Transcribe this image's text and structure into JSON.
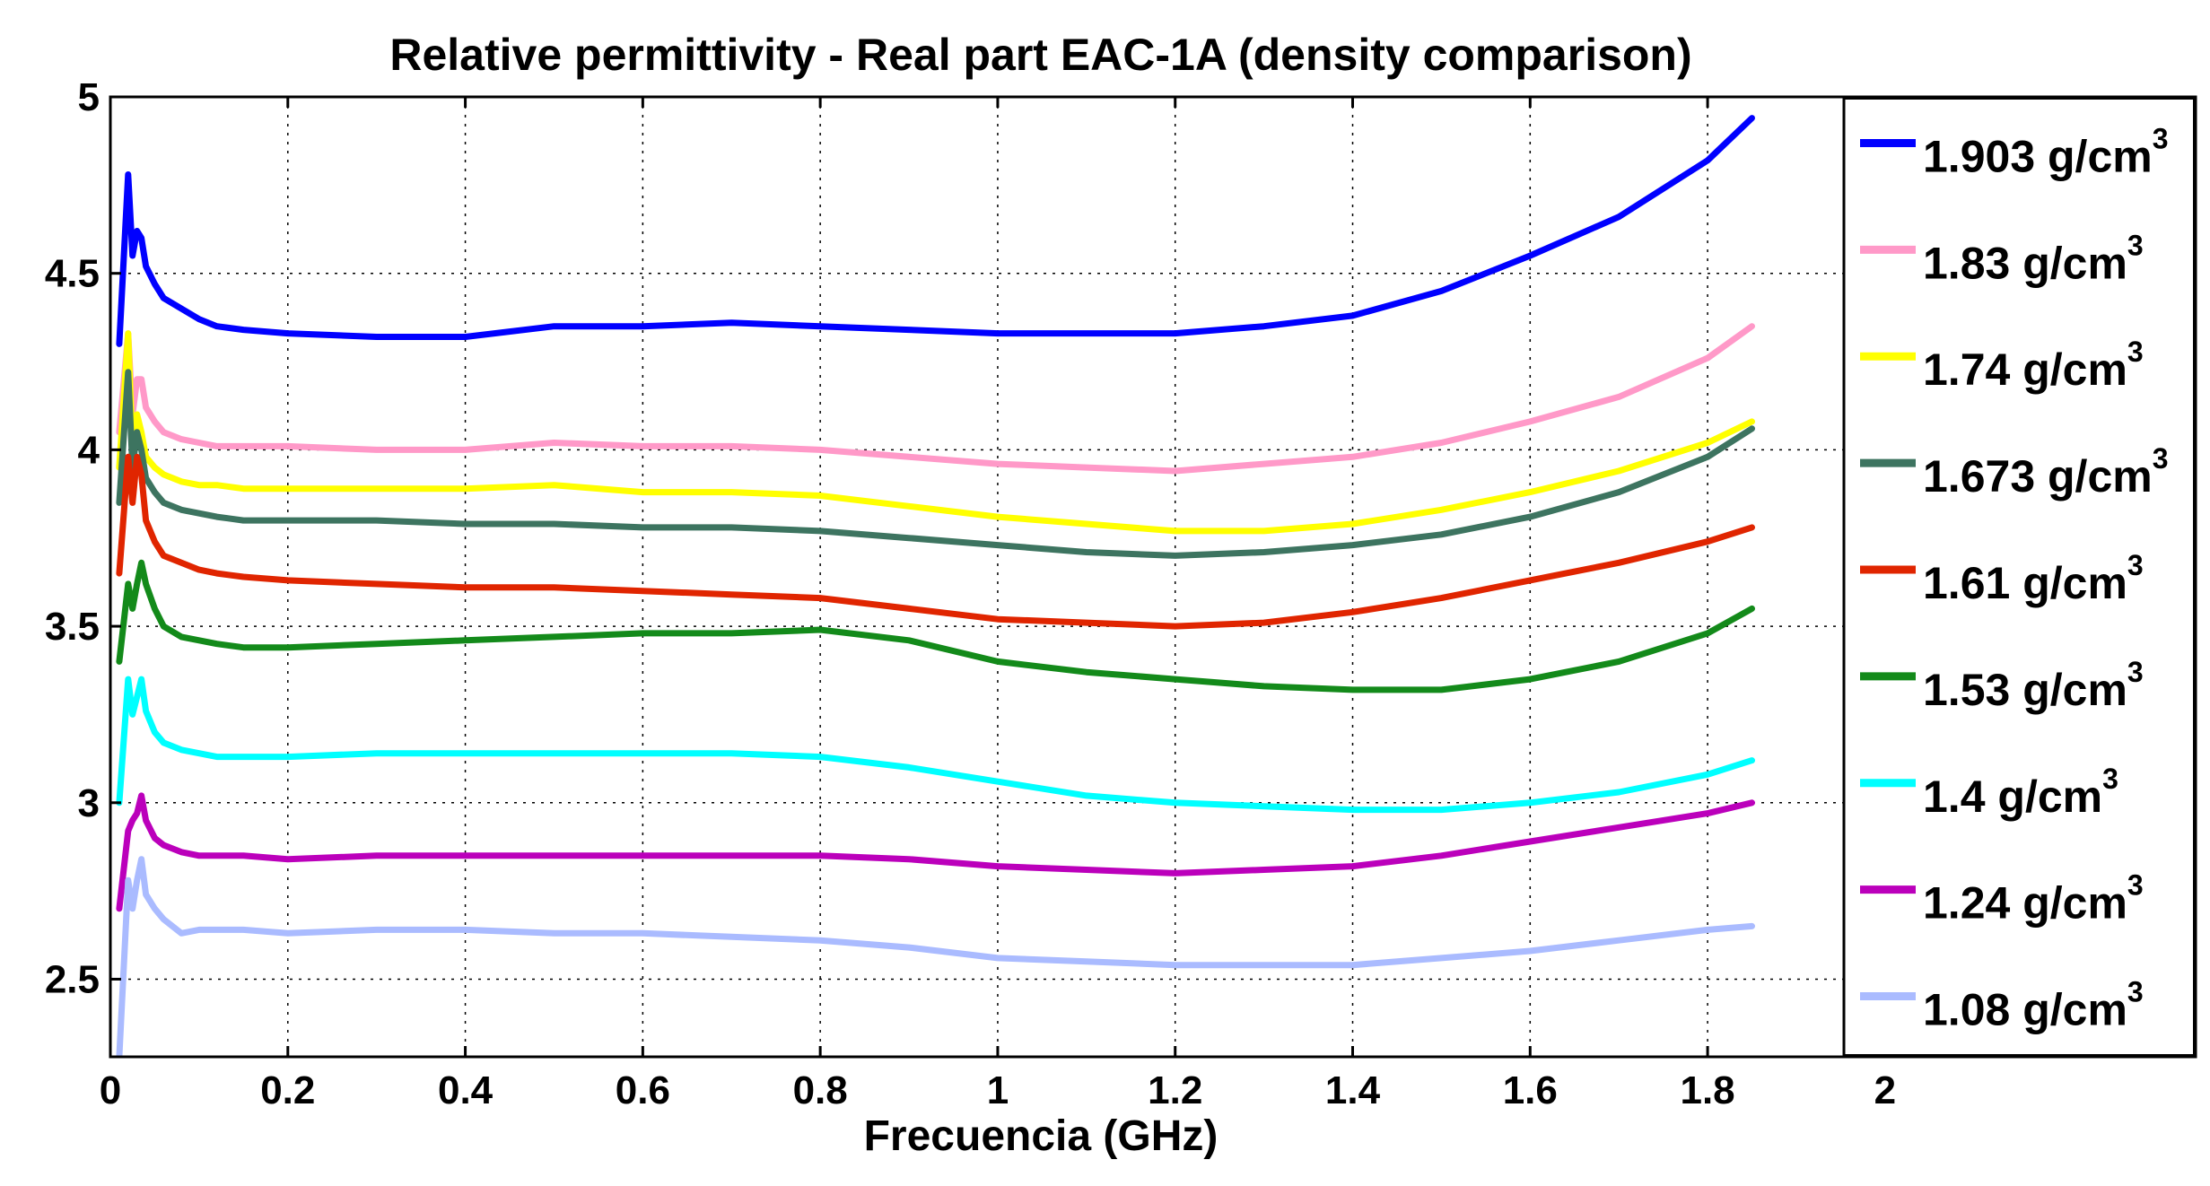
{
  "chart_data": {
    "type": "line",
    "title": "Relative permittivity - Real part EAC-1A (density comparison)",
    "xlabel": "Frecuencia (GHz)",
    "ylabel": "",
    "xlim": [
      0,
      2.35
    ],
    "ylim": [
      2.28,
      5
    ],
    "grid": true,
    "legend_position": "right",
    "x_ticks": [
      0,
      0.2,
      0.4,
      0.6,
      0.8,
      1,
      1.2,
      1.4,
      1.6,
      1.8,
      2
    ],
    "x_tick_labels": [
      "0",
      "0.2",
      "0.4",
      "0.6",
      "0.8",
      "1",
      "1.2",
      "1.4",
      "1.6",
      "1.8",
      "2"
    ],
    "y_ticks": [
      2.5,
      3,
      3.5,
      4,
      4.5,
      5
    ],
    "y_tick_labels": [
      "2.5",
      "3",
      "3.5",
      "4",
      "4.5",
      "5"
    ],
    "x": [
      0.01,
      0.02,
      0.025,
      0.03,
      0.035,
      0.04,
      0.05,
      0.06,
      0.08,
      0.1,
      0.12,
      0.15,
      0.2,
      0.3,
      0.4,
      0.5,
      0.6,
      0.7,
      0.8,
      0.9,
      1.0,
      1.1,
      1.2,
      1.3,
      1.4,
      1.5,
      1.6,
      1.7,
      1.8,
      1.85
    ],
    "series": [
      {
        "name": "1.903",
        "unit": "g/cm",
        "exp": "3",
        "color": "#0000ff",
        "values": [
          4.3,
          4.78,
          4.55,
          4.62,
          4.6,
          4.52,
          4.47,
          4.43,
          4.4,
          4.37,
          4.35,
          4.34,
          4.33,
          4.32,
          4.32,
          4.35,
          4.35,
          4.36,
          4.35,
          4.34,
          4.33,
          4.33,
          4.33,
          4.35,
          4.38,
          4.45,
          4.55,
          4.66,
          4.82,
          4.94
        ]
      },
      {
        "name": "1.83",
        "unit": "g/cm",
        "exp": "3",
        "color": "#ff99c8",
        "values": [
          4.05,
          4.33,
          4.1,
          4.2,
          4.2,
          4.12,
          4.08,
          4.05,
          4.03,
          4.02,
          4.01,
          4.01,
          4.01,
          4.0,
          4.0,
          4.02,
          4.01,
          4.01,
          4.0,
          3.98,
          3.96,
          3.95,
          3.94,
          3.96,
          3.98,
          4.02,
          4.08,
          4.15,
          4.26,
          4.35
        ]
      },
      {
        "name": "1.74",
        "unit": "g/cm",
        "exp": "3",
        "color": "#ffff00",
        "values": [
          3.95,
          4.33,
          4.0,
          4.1,
          4.05,
          3.98,
          3.95,
          3.93,
          3.91,
          3.9,
          3.9,
          3.89,
          3.89,
          3.89,
          3.89,
          3.9,
          3.88,
          3.88,
          3.87,
          3.84,
          3.81,
          3.79,
          3.77,
          3.77,
          3.79,
          3.83,
          3.88,
          3.94,
          4.02,
          4.08
        ]
      },
      {
        "name": "1.673",
        "unit": "g/cm",
        "exp": "3",
        "color": "#3d7460",
        "values": [
          3.85,
          4.22,
          3.95,
          4.05,
          4.0,
          3.92,
          3.88,
          3.85,
          3.83,
          3.82,
          3.81,
          3.8,
          3.8,
          3.8,
          3.79,
          3.79,
          3.78,
          3.78,
          3.77,
          3.75,
          3.73,
          3.71,
          3.7,
          3.71,
          3.73,
          3.76,
          3.81,
          3.88,
          3.98,
          4.06
        ]
      },
      {
        "name": "1.61",
        "unit": "g/cm",
        "exp": "3",
        "color": "#e02500",
        "values": [
          3.65,
          3.98,
          3.85,
          3.98,
          3.93,
          3.8,
          3.74,
          3.7,
          3.68,
          3.66,
          3.65,
          3.64,
          3.63,
          3.62,
          3.61,
          3.61,
          3.6,
          3.59,
          3.58,
          3.55,
          3.52,
          3.51,
          3.5,
          3.51,
          3.54,
          3.58,
          3.63,
          3.68,
          3.74,
          3.78
        ]
      },
      {
        "name": "1.53",
        "unit": "g/cm",
        "exp": "3",
        "color": "#138a1a",
        "values": [
          3.4,
          3.62,
          3.55,
          3.62,
          3.68,
          3.62,
          3.55,
          3.5,
          3.47,
          3.46,
          3.45,
          3.44,
          3.44,
          3.45,
          3.46,
          3.47,
          3.48,
          3.48,
          3.49,
          3.46,
          3.4,
          3.37,
          3.35,
          3.33,
          3.32,
          3.32,
          3.35,
          3.4,
          3.48,
          3.55
        ]
      },
      {
        "name": "1.4",
        "unit": "g/cm",
        "exp": "3",
        "color": "#00ffff",
        "values": [
          3.0,
          3.35,
          3.25,
          3.3,
          3.35,
          3.26,
          3.2,
          3.17,
          3.15,
          3.14,
          3.13,
          3.13,
          3.13,
          3.14,
          3.14,
          3.14,
          3.14,
          3.14,
          3.13,
          3.1,
          3.06,
          3.02,
          3.0,
          2.99,
          2.98,
          2.98,
          3.0,
          3.03,
          3.08,
          3.12
        ]
      },
      {
        "name": "1.24",
        "unit": "g/cm",
        "exp": "3",
        "color": "#bb00bb",
        "values": [
          2.7,
          2.92,
          2.95,
          2.97,
          3.02,
          2.95,
          2.9,
          2.88,
          2.86,
          2.85,
          2.85,
          2.85,
          2.84,
          2.85,
          2.85,
          2.85,
          2.85,
          2.85,
          2.85,
          2.84,
          2.82,
          2.81,
          2.8,
          2.81,
          2.82,
          2.85,
          2.89,
          2.93,
          2.97,
          3.0
        ]
      },
      {
        "name": "1.08",
        "unit": "g/cm",
        "exp": "3",
        "color": "#aabbff",
        "values": [
          2.28,
          2.78,
          2.7,
          2.78,
          2.84,
          2.74,
          2.7,
          2.67,
          2.63,
          2.64,
          2.64,
          2.64,
          2.63,
          2.64,
          2.64,
          2.63,
          2.63,
          2.62,
          2.61,
          2.59,
          2.56,
          2.55,
          2.54,
          2.54,
          2.54,
          2.56,
          2.58,
          2.61,
          2.64,
          2.65
        ]
      }
    ]
  }
}
